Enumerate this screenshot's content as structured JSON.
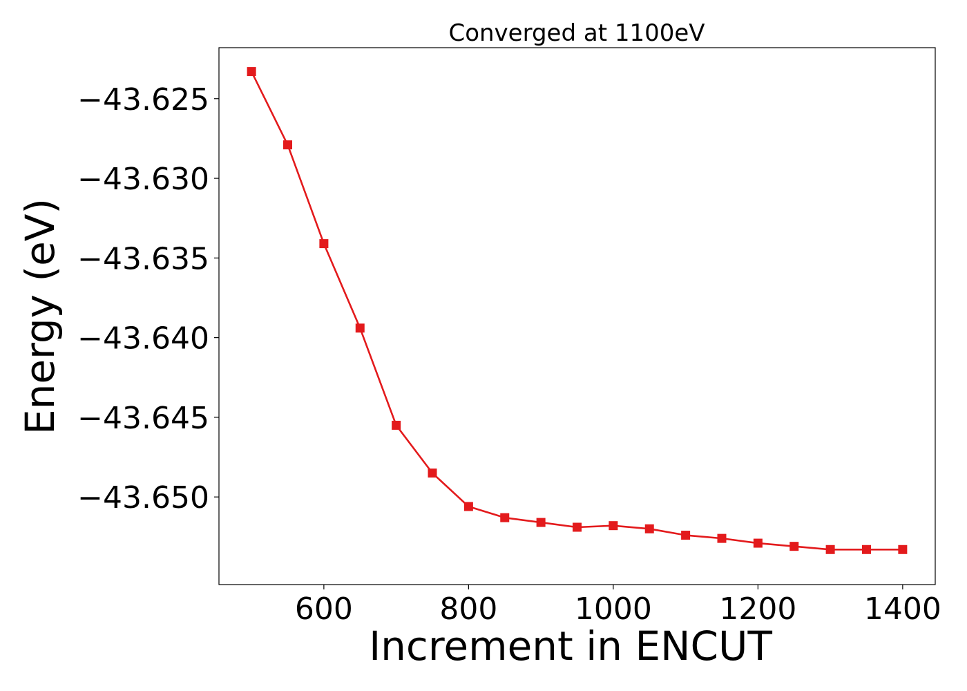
{
  "chart_data": {
    "type": "line",
    "title": "Converged at 1100eV",
    "xlabel": "Increment in ENCUT",
    "ylabel": "Energy (eV)",
    "xlim": [
      455,
      1445
    ],
    "ylim": [
      -43.6555,
      -43.6218
    ],
    "xticks": [
      600,
      800,
      1000,
      1200,
      1400
    ],
    "xtick_labels": [
      "600",
      "800",
      "1000",
      "1200",
      "1400"
    ],
    "yticks": [
      -43.625,
      -43.63,
      -43.635,
      -43.64,
      -43.645,
      -43.65
    ],
    "ytick_labels": [
      "−43.625",
      "−43.630",
      "−43.635",
      "−43.640",
      "−43.645",
      "−43.650"
    ],
    "grid": false,
    "colors": {
      "series": "#e31a1c"
    },
    "series": [
      {
        "marker": "square",
        "x": [
          500,
          550,
          600,
          650,
          700,
          750,
          800,
          850,
          900,
          950,
          1000,
          1050,
          1100,
          1150,
          1200,
          1250,
          1300,
          1350,
          1400
        ],
        "y": [
          -43.6233,
          -43.6279,
          -43.6341,
          -43.6394,
          -43.6455,
          -43.6485,
          -43.6506,
          -43.6513,
          -43.6516,
          -43.6519,
          -43.6518,
          -43.652,
          -43.6524,
          -43.6526,
          -43.6529,
          -43.6531,
          -43.6533,
          -43.6533,
          -43.6533
        ]
      }
    ]
  }
}
